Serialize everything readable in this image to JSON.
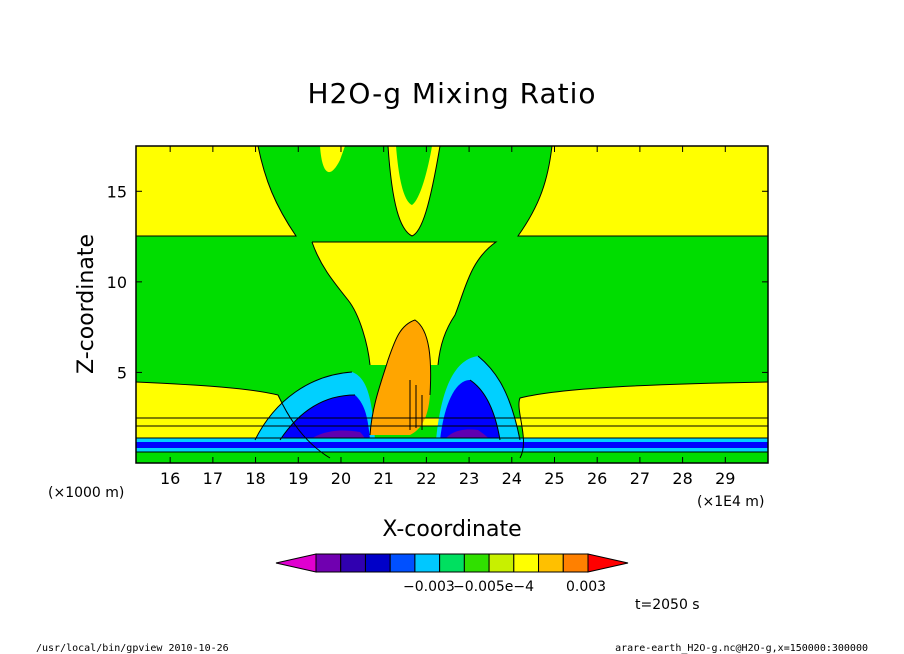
{
  "chart_data": {
    "type": "heatmap",
    "title": "H2O-g Mixing Ratio",
    "xlabel": "X-coordinate",
    "ylabel": "Z-coordinate",
    "x_unit": "(×1E4 m)",
    "y_unit": "(×1000 m)",
    "xlim": [
      15.2,
      30.0
    ],
    "ylim": [
      0.0,
      17.5
    ],
    "x_ticks": [
      "16",
      "17",
      "18",
      "19",
      "20",
      "21",
      "22",
      "23",
      "24",
      "25",
      "26",
      "27",
      "28",
      "29"
    ],
    "y_ticks": [
      "5",
      "10",
      "15"
    ],
    "x_tick_values": [
      16,
      17,
      18,
      19,
      20,
      21,
      22,
      23,
      24,
      25,
      26,
      27,
      28,
      29
    ],
    "y_tick_values": [
      5,
      10,
      15
    ],
    "colorbar": {
      "labels": [
        "−0.003",
        "−0.005e−4",
        "0.003"
      ],
      "colors": [
        "#b000b0",
        "#7000b0",
        "#3000b0",
        "#0000c8",
        "#0050ff",
        "#00c8ff",
        "#00e060",
        "#30e000",
        "#c8f000",
        "#ffff00",
        "#ffc000",
        "#ff8000",
        "#ff0000"
      ]
    },
    "colors": {
      "background": "#00dd00",
      "yellow": "#ffff00",
      "orange": "#ffa500",
      "cyan": "#00d0ff",
      "blue": "#0000ff",
      "navy": "#0000a0",
      "purple": "#6000b0",
      "magenta": "#c000c0"
    }
  },
  "annotations": {
    "time": "t=2050 s"
  },
  "footer": {
    "left": "/usr/local/bin/gpview  2010-10-26",
    "right": "arare-earth_H2O-g.nc@H2O-g,x=150000:300000"
  }
}
